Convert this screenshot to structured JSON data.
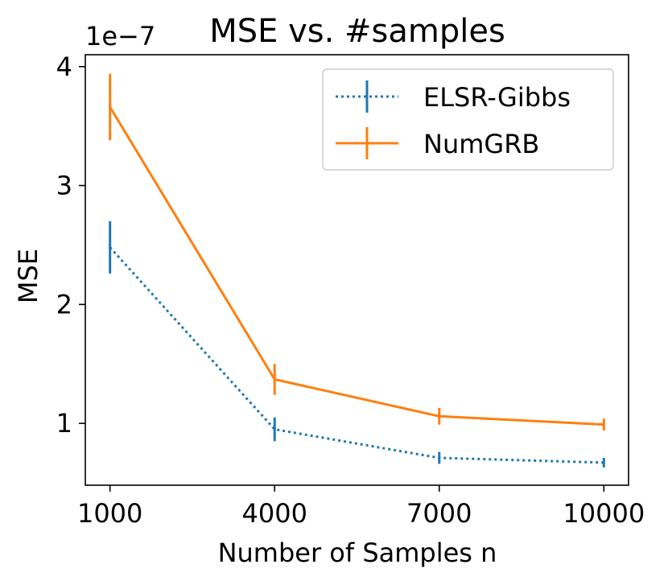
{
  "chart_data": {
    "type": "line",
    "title": "MSE vs. #samples",
    "xlabel": "Number of Samples n",
    "ylabel": "MSE",
    "y_offset_label": "1e−7",
    "x": [
      1000,
      4000,
      7000,
      10000
    ],
    "xtick_labels": [
      "1000",
      "4000",
      "7000",
      "10000"
    ],
    "ytick_values": [
      1,
      2,
      3,
      4
    ],
    "ytick_labels": [
      "1",
      "2",
      "3",
      "4"
    ],
    "xlim": [
      550,
      10450
    ],
    "ylim": [
      0.48,
      4.1
    ],
    "legend_position": "top-right",
    "series": [
      {
        "name": "ELSR-Gibbs",
        "color": "#1f77b4",
        "line_style": "dotted",
        "values": [
          2.48,
          0.95,
          0.71,
          0.67
        ],
        "errors": [
          0.22,
          0.1,
          0.05,
          0.04
        ]
      },
      {
        "name": "NumGRB",
        "color": "#ff7f0e",
        "line_style": "solid",
        "values": [
          3.66,
          1.37,
          1.06,
          0.99
        ],
        "errors": [
          0.28,
          0.13,
          0.07,
          0.05
        ]
      }
    ]
  }
}
